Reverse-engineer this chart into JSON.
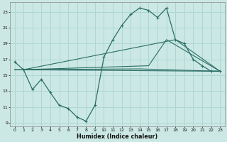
{
  "xlabel": "Humidex (Indice chaleur)",
  "bg_color": "#cce8e4",
  "grid_color": "#aad8d4",
  "line_color": "#2a6e65",
  "xlim": [
    -0.5,
    23.5
  ],
  "ylim": [
    8.5,
    24.2
  ],
  "yticks": [
    9,
    11,
    13,
    15,
    17,
    19,
    21,
    23
  ],
  "xticks": [
    0,
    1,
    2,
    3,
    4,
    5,
    6,
    7,
    8,
    9,
    10,
    11,
    12,
    13,
    14,
    15,
    16,
    17,
    18,
    19,
    20,
    21,
    22,
    23
  ],
  "xtick_labels": [
    "0",
    "1",
    "2",
    "3",
    "4",
    "5",
    "6",
    "7",
    "8",
    "9",
    "10",
    "11",
    "12",
    "13",
    "14",
    "15",
    "16",
    "17",
    "18",
    "19",
    "20",
    "21",
    "22",
    "23"
  ],
  "series1_x": [
    0,
    1,
    2,
    3,
    4,
    5,
    6,
    7,
    8,
    9,
    10,
    11,
    12,
    13,
    14,
    15,
    16,
    17,
    18,
    19,
    20,
    21,
    22,
    23
  ],
  "series1_y": [
    16.7,
    15.7,
    13.2,
    14.5,
    12.8,
    11.2,
    10.8,
    9.7,
    9.2,
    11.2,
    17.3,
    19.5,
    21.3,
    22.7,
    23.5,
    23.2,
    22.3,
    23.5,
    19.5,
    19.0,
    17.0,
    16.2,
    15.5,
    15.5
  ],
  "series2_x": [
    0,
    23
  ],
  "series2_y": [
    15.7,
    15.5
  ],
  "series3_x": [
    0,
    14,
    23
  ],
  "series3_y": [
    15.7,
    15.8,
    15.5
  ],
  "series4_x": [
    1,
    15,
    17,
    23
  ],
  "series4_y": [
    15.7,
    16.2,
    19.5,
    15.5
  ],
  "series5_x": [
    1,
    18,
    23
  ],
  "series5_y": [
    15.7,
    19.5,
    15.5
  ]
}
